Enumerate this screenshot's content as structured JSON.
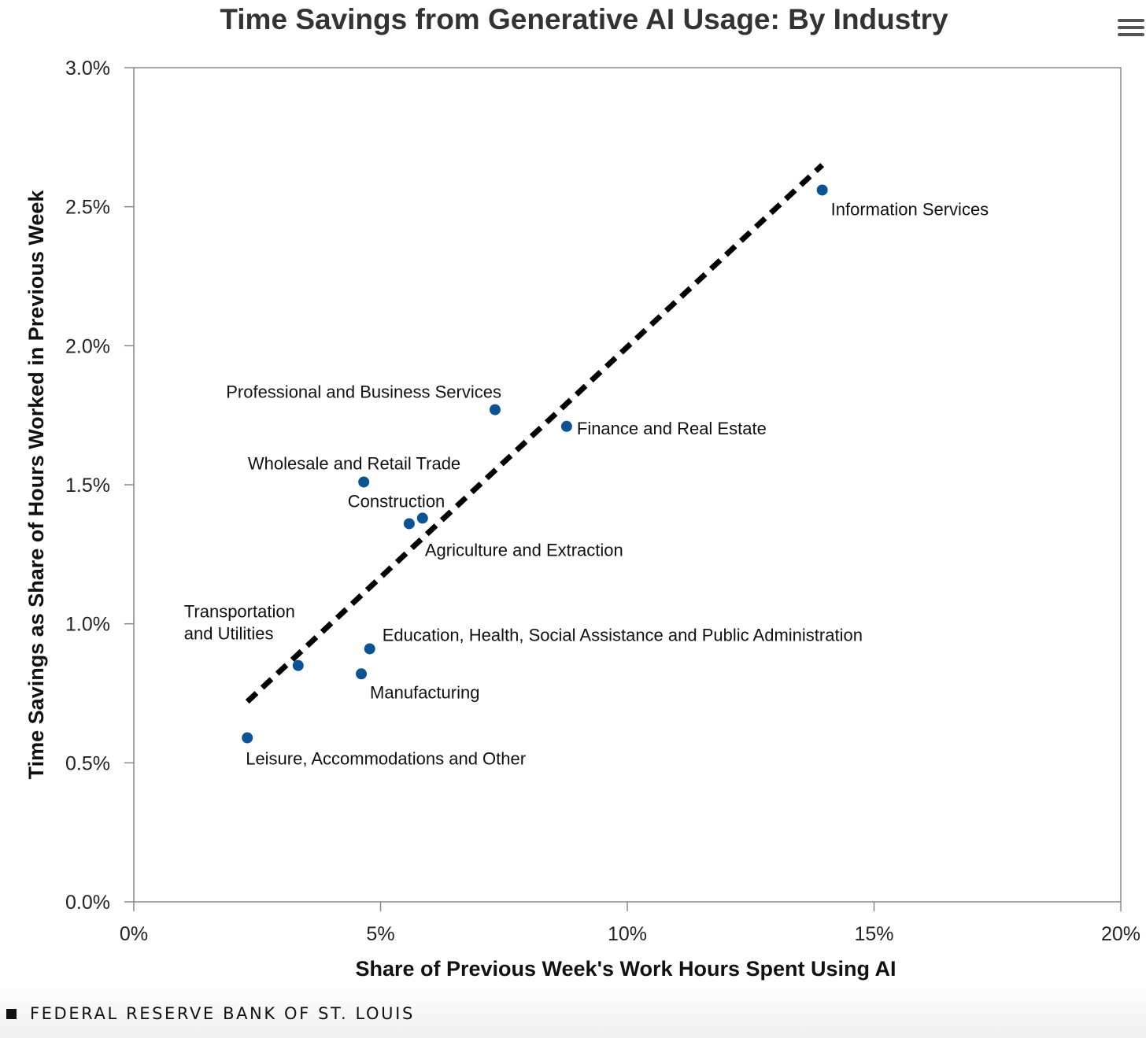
{
  "chart_data": {
    "type": "scatter",
    "title": "Time Savings from Generative AI Usage: By Industry",
    "xlabel": "Share of Previous Week's Work Hours Spent Using AI",
    "ylabel": "Time Savings as Share of Hours Worked in Previous Week",
    "xlim": [
      0,
      20
    ],
    "ylim": [
      0,
      3.0
    ],
    "xticks": [
      0,
      5,
      10,
      15,
      20
    ],
    "xtick_labels": [
      "0%",
      "5%",
      "10%",
      "15%",
      "20%"
    ],
    "yticks": [
      0,
      0.5,
      1.0,
      1.5,
      2.0,
      2.5,
      3.0
    ],
    "ytick_labels": [
      "0.0%",
      "0.5%",
      "1.0%",
      "1.5%",
      "2.0%",
      "2.5%",
      "3.0%"
    ],
    "grid": false,
    "point_color": "#0b5394",
    "points": [
      {
        "label": "Information Services",
        "x": 13.95,
        "y": 2.56
      },
      {
        "label": "Professional and Business Services",
        "x": 7.32,
        "y": 1.77
      },
      {
        "label": "Finance and Real Estate",
        "x": 8.77,
        "y": 1.71
      },
      {
        "label": "Wholesale and Retail Trade",
        "x": 4.66,
        "y": 1.51
      },
      {
        "label": "Construction",
        "x": 5.85,
        "y": 1.38
      },
      {
        "label": "Agriculture and Extraction",
        "x": 5.58,
        "y": 1.36
      },
      {
        "label": "Transportation and Utilities",
        "label_lines": [
          "Transportation",
          "and Utilities"
        ],
        "x": 3.33,
        "y": 0.85
      },
      {
        "label": "Education, Health, Social Assistance and Public Administration",
        "x": 4.78,
        "y": 0.91
      },
      {
        "label": "Manufacturing",
        "x": 4.61,
        "y": 0.82
      },
      {
        "label": "Leisure, Accommodations and Other",
        "x": 2.3,
        "y": 0.59
      }
    ],
    "trendline": {
      "x": [
        2.3,
        13.95
      ],
      "y": [
        0.72,
        2.65
      ],
      "style": "dashed",
      "color": "#000000"
    }
  },
  "footer": {
    "source": "FEDERAL RESERVE BANK OF ST. LOUIS"
  },
  "menu": {
    "icon": "hamburger-menu-icon"
  }
}
